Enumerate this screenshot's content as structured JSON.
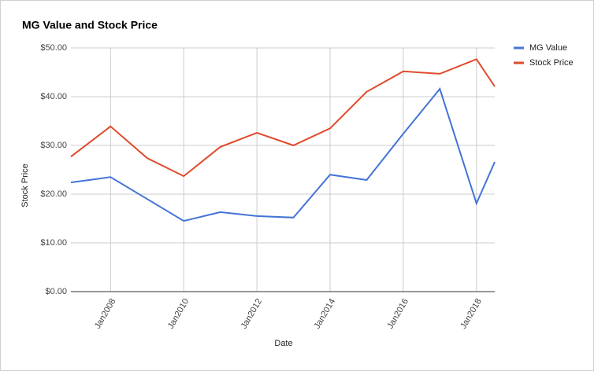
{
  "chart_data": {
    "type": "line",
    "title": "MG Value and Stock Price",
    "x_label": "Date",
    "y_label": "Stock Price",
    "x": [
      "2006-12",
      "2008-01",
      "2009-01",
      "2010-01",
      "2011-01",
      "2012-01",
      "2013-01",
      "2014-01",
      "2015-01",
      "2016-01",
      "2017-01",
      "2018-01",
      "2018-07"
    ],
    "series": [
      {
        "name": "MG Value",
        "color": "#4374d7",
        "values": [
          22.4,
          23.5,
          19.0,
          14.5,
          16.3,
          15.5,
          15.2,
          24.0,
          22.9,
          32.4,
          41.6,
          18.1,
          26.6
        ]
      },
      {
        "name": "Stock Price",
        "color": "#e04a2b",
        "values": [
          27.7,
          33.9,
          27.4,
          23.7,
          29.7,
          32.6,
          30.0,
          33.5,
          41.0,
          45.2,
          44.7,
          47.7,
          42.1
        ]
      }
    ],
    "xlim": [
      "2006-12",
      "2018-07"
    ],
    "xticks": [
      {
        "value": "2008-01",
        "label": "Jan2008"
      },
      {
        "value": "2010-01",
        "label": "Jan2010"
      },
      {
        "value": "2012-01",
        "label": "Jan2012"
      },
      {
        "value": "2014-01",
        "label": "Jan2014"
      },
      {
        "value": "2016-01",
        "label": "Jan2016"
      },
      {
        "value": "2018-01",
        "label": "Jan2018"
      }
    ],
    "ylim": [
      0,
      50
    ],
    "yticks": [
      {
        "value": 0,
        "label": "$0.00"
      },
      {
        "value": 10,
        "label": "$10.00"
      },
      {
        "value": 20,
        "label": "$20.00"
      },
      {
        "value": 30,
        "label": "$30.00"
      },
      {
        "value": 40,
        "label": "$40.00"
      },
      {
        "value": 50,
        "label": "$50.00"
      }
    ],
    "grid": true,
    "legend": "right"
  }
}
